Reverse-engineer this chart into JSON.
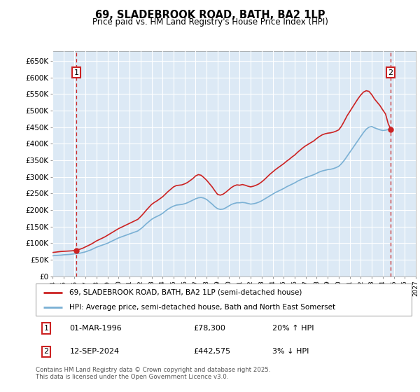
{
  "title": "69, SLADEBROOK ROAD, BATH, BA2 1LP",
  "subtitle": "Price paid vs. HM Land Registry's House Price Index (HPI)",
  "ylim": [
    0,
    680000
  ],
  "yticks": [
    0,
    50000,
    100000,
    150000,
    200000,
    250000,
    300000,
    350000,
    400000,
    450000,
    500000,
    550000,
    600000,
    650000
  ],
  "ytick_labels": [
    "£0",
    "£50K",
    "£100K",
    "£150K",
    "£200K",
    "£250K",
    "£300K",
    "£350K",
    "£400K",
    "£450K",
    "£500K",
    "£550K",
    "£600K",
    "£650K"
  ],
  "bg_color": "#dce9f5",
  "outer_hatch_color": "#c5d8ea",
  "grid_color": "#ffffff",
  "legend_label_red": "69, SLADEBROOK ROAD, BATH, BA2 1LP (semi-detached house)",
  "legend_label_blue": "HPI: Average price, semi-detached house, Bath and North East Somerset",
  "annotation1_date": "01-MAR-1996",
  "annotation1_price": "£78,300",
  "annotation1_hpi": "20% ↑ HPI",
  "annotation2_date": "12-SEP-2024",
  "annotation2_price": "£442,575",
  "annotation2_hpi": "3% ↓ HPI",
  "footer": "Contains HM Land Registry data © Crown copyright and database right 2025.\nThis data is licensed under the Open Government Licence v3.0.",
  "red_color": "#cc2222",
  "blue_color": "#7ab0d4",
  "sale1_year": 1996.17,
  "sale1_price": 78300,
  "sale2_year": 2024.72,
  "sale2_price": 442575,
  "hpi_years": [
    1994.0,
    1994.25,
    1994.5,
    1994.75,
    1995.0,
    1995.25,
    1995.5,
    1995.75,
    1996.0,
    1996.25,
    1996.5,
    1996.75,
    1997.0,
    1997.25,
    1997.5,
    1997.75,
    1998.0,
    1998.25,
    1998.5,
    1998.75,
    1999.0,
    1999.25,
    1999.5,
    1999.75,
    2000.0,
    2000.25,
    2000.5,
    2000.75,
    2001.0,
    2001.25,
    2001.5,
    2001.75,
    2002.0,
    2002.25,
    2002.5,
    2002.75,
    2003.0,
    2003.25,
    2003.5,
    2003.75,
    2004.0,
    2004.25,
    2004.5,
    2004.75,
    2005.0,
    2005.25,
    2005.5,
    2005.75,
    2006.0,
    2006.25,
    2006.5,
    2006.75,
    2007.0,
    2007.25,
    2007.5,
    2007.75,
    2008.0,
    2008.25,
    2008.5,
    2008.75,
    2009.0,
    2009.25,
    2009.5,
    2009.75,
    2010.0,
    2010.25,
    2010.5,
    2010.75,
    2011.0,
    2011.25,
    2011.5,
    2011.75,
    2012.0,
    2012.25,
    2012.5,
    2012.75,
    2013.0,
    2013.25,
    2013.5,
    2013.75,
    2014.0,
    2014.25,
    2014.5,
    2014.75,
    2015.0,
    2015.25,
    2015.5,
    2015.75,
    2016.0,
    2016.25,
    2016.5,
    2016.75,
    2017.0,
    2017.25,
    2017.5,
    2017.75,
    2018.0,
    2018.25,
    2018.5,
    2018.75,
    2019.0,
    2019.25,
    2019.5,
    2019.75,
    2020.0,
    2020.25,
    2020.5,
    2020.75,
    2021.0,
    2021.25,
    2021.5,
    2021.75,
    2022.0,
    2022.25,
    2022.5,
    2022.75,
    2023.0,
    2023.25,
    2023.5,
    2023.75,
    2024.0,
    2024.25,
    2024.5,
    2024.75
  ],
  "hpi_values": [
    62000,
    63000,
    63500,
    64000,
    65000,
    65500,
    66000,
    67000,
    68000,
    69000,
    70000,
    72000,
    74000,
    77000,
    80000,
    84000,
    88000,
    91000,
    94000,
    97000,
    100000,
    104000,
    108000,
    112000,
    116000,
    119000,
    122000,
    125000,
    128000,
    131000,
    134000,
    137000,
    143000,
    150000,
    158000,
    165000,
    172000,
    177000,
    181000,
    185000,
    190000,
    197000,
    203000,
    208000,
    212000,
    215000,
    216000,
    217000,
    219000,
    222000,
    226000,
    230000,
    234000,
    237000,
    238000,
    236000,
    232000,
    225000,
    218000,
    210000,
    204000,
    202000,
    203000,
    207000,
    212000,
    217000,
    220000,
    222000,
    222000,
    223000,
    222000,
    220000,
    218000,
    219000,
    221000,
    224000,
    228000,
    233000,
    238000,
    243000,
    248000,
    253000,
    257000,
    261000,
    265000,
    270000,
    274000,
    278000,
    282000,
    287000,
    291000,
    295000,
    298000,
    301000,
    304000,
    307000,
    311000,
    315000,
    318000,
    320000,
    322000,
    323000,
    325000,
    328000,
    332000,
    340000,
    350000,
    362000,
    374000,
    386000,
    398000,
    410000,
    422000,
    434000,
    444000,
    450000,
    452000,
    448000,
    445000,
    442000,
    440000,
    441000,
    443000,
    445000
  ],
  "red_years": [
    1994.0,
    1994.25,
    1994.5,
    1994.75,
    1995.0,
    1995.25,
    1995.5,
    1995.75,
    1996.0,
    1996.25,
    1996.5,
    1996.75,
    1997.0,
    1997.25,
    1997.5,
    1997.75,
    1998.0,
    1998.25,
    1998.5,
    1998.75,
    1999.0,
    1999.25,
    1999.5,
    1999.75,
    2000.0,
    2000.25,
    2000.5,
    2000.75,
    2001.0,
    2001.25,
    2001.5,
    2001.75,
    2002.0,
    2002.25,
    2002.5,
    2002.75,
    2003.0,
    2003.25,
    2003.5,
    2003.75,
    2004.0,
    2004.25,
    2004.5,
    2004.75,
    2005.0,
    2005.25,
    2005.5,
    2005.75,
    2006.0,
    2006.25,
    2006.5,
    2006.75,
    2007.0,
    2007.25,
    2007.5,
    2007.75,
    2008.0,
    2008.25,
    2008.5,
    2008.75,
    2009.0,
    2009.25,
    2009.5,
    2009.75,
    2010.0,
    2010.25,
    2010.5,
    2010.75,
    2011.0,
    2011.25,
    2011.5,
    2011.75,
    2012.0,
    2012.25,
    2012.5,
    2012.75,
    2013.0,
    2013.25,
    2013.5,
    2013.75,
    2014.0,
    2014.25,
    2014.5,
    2014.75,
    2015.0,
    2015.25,
    2015.5,
    2015.75,
    2016.0,
    2016.25,
    2016.5,
    2016.75,
    2017.0,
    2017.25,
    2017.5,
    2017.75,
    2018.0,
    2018.25,
    2018.5,
    2018.75,
    2019.0,
    2019.25,
    2019.5,
    2019.75,
    2020.0,
    2020.25,
    2020.5,
    2020.75,
    2021.0,
    2021.25,
    2021.5,
    2021.75,
    2022.0,
    2022.25,
    2022.5,
    2022.75,
    2023.0,
    2023.25,
    2023.5,
    2023.75,
    2024.0,
    2024.25,
    2024.5,
    2024.75
  ],
  "red_values": [
    72000,
    73000,
    74000,
    75000,
    75500,
    76000,
    76500,
    77000,
    78000,
    80000,
    82000,
    85000,
    89000,
    93000,
    97000,
    102000,
    107000,
    111000,
    115000,
    119000,
    124000,
    129000,
    134000,
    139000,
    144000,
    148000,
    152000,
    156000,
    160000,
    164000,
    168000,
    172000,
    180000,
    189000,
    199000,
    208000,
    217000,
    223000,
    228000,
    234000,
    240000,
    248000,
    256000,
    263000,
    270000,
    274000,
    275000,
    276000,
    279000,
    283000,
    289000,
    295000,
    303000,
    307000,
    305000,
    298000,
    290000,
    280000,
    270000,
    258000,
    247000,
    245000,
    248000,
    254000,
    261000,
    268000,
    273000,
    276000,
    275000,
    277000,
    275000,
    272000,
    270000,
    272000,
    275000,
    279000,
    285000,
    292000,
    300000,
    308000,
    315000,
    322000,
    328000,
    334000,
    340000,
    347000,
    353000,
    360000,
    366000,
    374000,
    381000,
    388000,
    394000,
    399000,
    404000,
    409000,
    416000,
    422000,
    427000,
    430000,
    432000,
    433000,
    435000,
    438000,
    442000,
    453000,
    468000,
    484000,
    497000,
    510000,
    523000,
    536000,
    547000,
    556000,
    560000,
    558000,
    548000,
    535000,
    525000,
    515000,
    502000,
    490000,
    460000,
    442575
  ]
}
